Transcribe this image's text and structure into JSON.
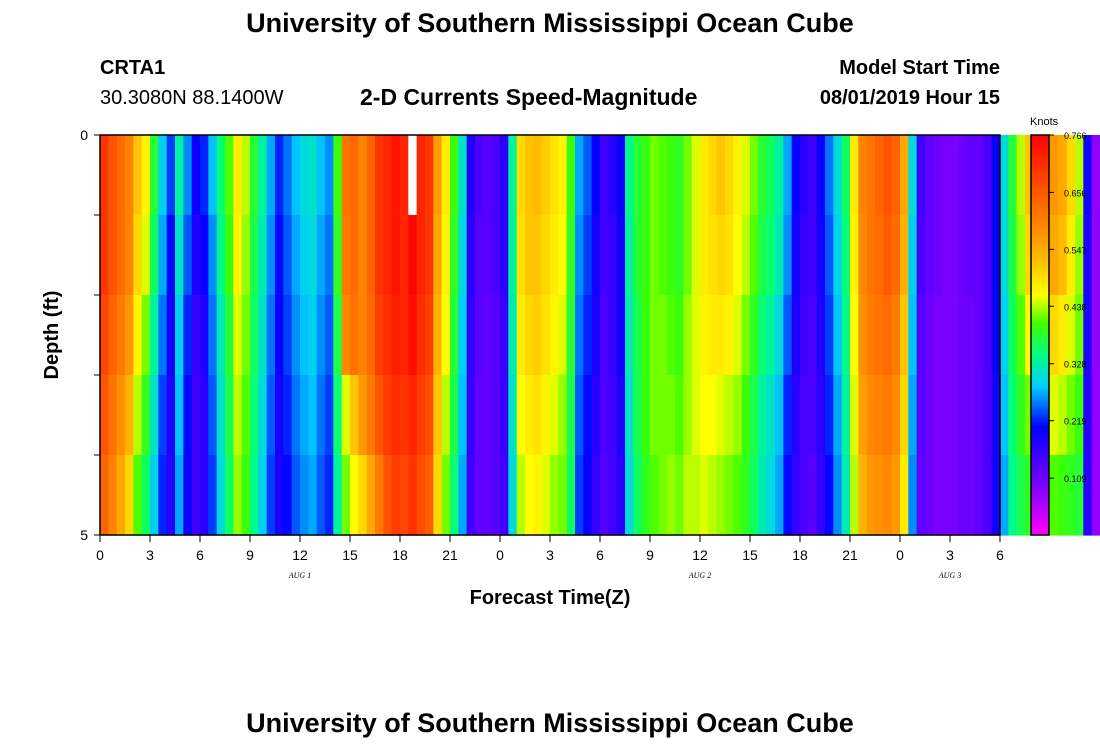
{
  "header": {
    "title": "University of Southern Mississippi Ocean Cube",
    "station_id": "CRTA1",
    "station_coords": "30.3080N 88.1400W",
    "model_start_label": "Model Start Time",
    "model_start_value": "08/01/2019 Hour 15"
  },
  "footer": {
    "title": "University of Southern Mississippi Ocean Cube"
  },
  "chart_data": {
    "type": "heatmap",
    "title": "2-D Currents Speed-Magnitude",
    "xlabel": "Forecast Time(Z)",
    "ylabel": "Depth (ft)",
    "x_unit": "hours since 08/01/2019 00Z",
    "xlim": [
      0,
      54
    ],
    "ylim": [
      0,
      5
    ],
    "y_tick_labels": [
      "0",
      "5"
    ],
    "x_tick_labels": [
      "0",
      "3",
      "6",
      "9",
      "12",
      "15",
      "18",
      "21",
      "0",
      "3",
      "6",
      "9",
      "12",
      "15",
      "18",
      "21",
      "0",
      "3",
      "6"
    ],
    "date_labels": [
      {
        "text": "AUG 1",
        "hour": 12
      },
      {
        "text": "AUG 2",
        "hour": 36
      },
      {
        "text": "AUG 3",
        "hour": 51
      }
    ],
    "colorbar": {
      "label": "Knots",
      "min": 0.0,
      "max": 0.766,
      "tick_labels": [
        "0.766",
        "0.656",
        "0.547",
        "0.438",
        "0.328",
        "0.219",
        "0.109"
      ]
    },
    "time_step_hours": 0.5,
    "depth_rows": 5,
    "rows": [
      [
        0.7,
        0.66,
        0.63,
        0.6,
        0.52,
        0.47,
        0.38,
        0.29,
        0.23,
        0.33,
        0.26,
        0.2,
        0.22,
        0.28,
        0.35,
        0.41,
        0.48,
        0.44,
        0.38,
        0.33,
        0.27,
        0.22,
        0.25,
        0.28,
        0.3,
        0.31,
        0.28,
        0.26,
        0.4,
        0.62,
        0.63,
        0.6,
        0.64,
        0.7,
        0.72,
        0.74,
        0.72,
        null,
        0.72,
        0.7,
        0.56,
        0.48,
        0.4,
        0.31,
        0.18,
        0.14,
        0.13,
        0.14,
        0.17,
        0.33,
        0.5,
        0.52,
        0.53,
        0.51,
        0.49,
        0.47,
        0.4,
        0.27,
        0.24,
        0.2,
        0.15,
        0.17,
        0.2,
        0.34,
        0.38,
        0.4,
        0.42,
        0.41,
        0.4,
        0.39,
        0.42,
        0.45,
        0.48,
        0.5,
        0.52,
        0.5,
        0.47,
        0.45,
        0.42,
        0.38,
        0.36,
        0.33,
        0.27,
        0.2,
        0.17,
        0.15,
        0.2,
        0.25,
        0.3,
        0.36,
        0.48,
        0.6,
        0.62,
        0.64,
        0.66,
        0.64,
        0.55,
        0.3,
        0.15,
        0.12,
        0.11,
        0.1,
        0.1,
        0.11,
        0.12,
        0.12,
        0.14,
        0.2,
        0.3,
        0.38,
        0.44,
        0.52,
        0.54,
        0.55,
        0.57,
        0.55,
        0.5,
        0.44,
        0.19,
        0.08,
        null,
        0.08,
        0.06
      ],
      [
        0.7,
        0.66,
        0.63,
        0.6,
        0.5,
        0.45,
        0.36,
        0.27,
        0.21,
        0.31,
        0.24,
        0.18,
        0.2,
        0.26,
        0.34,
        0.4,
        0.47,
        0.43,
        0.37,
        0.32,
        0.26,
        0.21,
        0.24,
        0.27,
        0.29,
        0.3,
        0.27,
        0.25,
        0.39,
        0.61,
        0.63,
        0.6,
        0.64,
        0.7,
        0.72,
        0.74,
        0.72,
        0.76,
        0.72,
        0.7,
        0.55,
        0.47,
        0.39,
        0.3,
        0.17,
        0.13,
        0.13,
        0.14,
        0.17,
        0.33,
        0.49,
        0.52,
        0.52,
        0.5,
        0.48,
        0.46,
        0.39,
        0.26,
        0.23,
        0.19,
        0.15,
        0.16,
        0.19,
        0.33,
        0.38,
        0.4,
        0.42,
        0.41,
        0.4,
        0.39,
        0.42,
        0.45,
        0.48,
        0.49,
        0.5,
        0.49,
        0.46,
        0.44,
        0.41,
        0.37,
        0.35,
        0.32,
        0.26,
        0.19,
        0.16,
        0.15,
        0.19,
        0.24,
        0.29,
        0.35,
        0.47,
        0.59,
        0.62,
        0.63,
        0.65,
        0.63,
        0.54,
        0.29,
        0.14,
        0.12,
        0.11,
        0.1,
        0.1,
        0.11,
        0.12,
        0.12,
        0.14,
        0.2,
        0.3,
        0.37,
        0.43,
        0.5,
        0.52,
        0.52,
        0.55,
        0.53,
        0.48,
        0.43,
        0.18,
        0.08,
        0.06,
        0.07,
        0.06
      ],
      [
        0.68,
        0.64,
        0.61,
        0.57,
        0.47,
        0.42,
        0.33,
        0.25,
        0.19,
        0.29,
        0.22,
        0.16,
        0.18,
        0.25,
        0.32,
        0.38,
        0.45,
        0.42,
        0.36,
        0.31,
        0.25,
        0.2,
        0.23,
        0.26,
        0.28,
        0.29,
        0.26,
        0.24,
        0.37,
        0.59,
        0.62,
        0.6,
        0.63,
        0.69,
        0.71,
        0.73,
        0.72,
        0.75,
        0.71,
        0.69,
        0.54,
        0.46,
        0.38,
        0.29,
        0.16,
        0.13,
        0.12,
        0.13,
        0.16,
        0.32,
        0.48,
        0.5,
        0.51,
        0.49,
        0.47,
        0.45,
        0.38,
        0.25,
        0.22,
        0.18,
        0.14,
        0.16,
        0.19,
        0.32,
        0.37,
        0.4,
        0.42,
        0.42,
        0.41,
        0.4,
        0.43,
        0.45,
        0.47,
        0.48,
        0.48,
        0.47,
        0.45,
        0.42,
        0.39,
        0.35,
        0.33,
        0.3,
        0.24,
        0.18,
        0.15,
        0.14,
        0.18,
        0.23,
        0.28,
        0.34,
        0.46,
        0.58,
        0.61,
        0.62,
        0.63,
        0.61,
        0.52,
        0.28,
        0.13,
        0.11,
        0.1,
        0.1,
        0.1,
        0.11,
        0.11,
        0.12,
        0.14,
        0.2,
        0.29,
        0.36,
        0.41,
        0.46,
        0.48,
        0.48,
        0.5,
        0.48,
        0.45,
        0.42,
        0.18,
        0.08,
        0.06,
        0.07,
        0.06
      ],
      [
        0.66,
        0.62,
        0.58,
        0.54,
        0.44,
        0.39,
        0.31,
        0.23,
        0.18,
        0.28,
        0.21,
        0.15,
        0.17,
        0.24,
        0.31,
        0.37,
        0.44,
        0.41,
        0.35,
        0.3,
        0.24,
        0.19,
        0.22,
        0.25,
        0.27,
        0.28,
        0.25,
        0.23,
        0.35,
        0.45,
        0.52,
        0.57,
        0.61,
        0.66,
        0.69,
        0.71,
        0.7,
        0.72,
        0.69,
        0.67,
        0.52,
        0.44,
        0.37,
        0.28,
        0.16,
        0.12,
        0.12,
        0.13,
        0.16,
        0.31,
        0.46,
        0.48,
        0.49,
        0.47,
        0.45,
        0.43,
        0.37,
        0.24,
        0.21,
        0.17,
        0.14,
        0.15,
        0.18,
        0.31,
        0.37,
        0.4,
        0.42,
        0.42,
        0.42,
        0.41,
        0.43,
        0.45,
        0.46,
        0.46,
        0.45,
        0.44,
        0.43,
        0.4,
        0.37,
        0.33,
        0.31,
        0.28,
        0.22,
        0.17,
        0.14,
        0.14,
        0.17,
        0.22,
        0.27,
        0.33,
        0.45,
        0.56,
        0.59,
        0.6,
        0.61,
        0.59,
        0.5,
        0.27,
        0.13,
        0.11,
        0.1,
        0.1,
        0.1,
        0.11,
        0.11,
        0.12,
        0.14,
        0.19,
        0.28,
        0.35,
        0.39,
        0.42,
        0.44,
        0.44,
        0.45,
        0.44,
        0.42,
        0.4,
        0.17,
        0.08,
        0.06,
        0.07,
        0.06
      ],
      [
        0.64,
        0.6,
        0.55,
        0.5,
        0.41,
        0.36,
        0.29,
        0.22,
        0.17,
        0.27,
        0.2,
        0.15,
        0.17,
        0.23,
        0.3,
        0.36,
        0.43,
        0.4,
        0.34,
        0.29,
        0.23,
        0.18,
        0.21,
        0.24,
        0.26,
        0.27,
        0.24,
        0.22,
        0.33,
        0.42,
        0.46,
        0.5,
        0.55,
        0.61,
        0.66,
        0.69,
        0.68,
        0.7,
        0.67,
        0.65,
        0.5,
        0.42,
        0.35,
        0.27,
        0.15,
        0.12,
        0.12,
        0.13,
        0.15,
        0.3,
        0.44,
        0.46,
        0.47,
        0.45,
        0.43,
        0.42,
        0.36,
        0.23,
        0.2,
        0.16,
        0.13,
        0.15,
        0.17,
        0.3,
        0.36,
        0.39,
        0.41,
        0.42,
        0.43,
        0.42,
        0.44,
        0.44,
        0.45,
        0.44,
        0.43,
        0.42,
        0.41,
        0.39,
        0.36,
        0.32,
        0.3,
        0.27,
        0.21,
        0.16,
        0.14,
        0.13,
        0.16,
        0.21,
        0.26,
        0.32,
        0.44,
        0.54,
        0.57,
        0.58,
        0.59,
        0.57,
        0.48,
        0.26,
        0.12,
        0.11,
        0.1,
        0.1,
        0.1,
        0.11,
        0.11,
        0.12,
        0.14,
        0.19,
        0.27,
        0.34,
        0.37,
        0.39,
        0.4,
        0.4,
        0.41,
        0.4,
        0.39,
        0.38,
        0.17,
        0.08,
        0.06,
        0.07,
        0.06
      ]
    ]
  }
}
